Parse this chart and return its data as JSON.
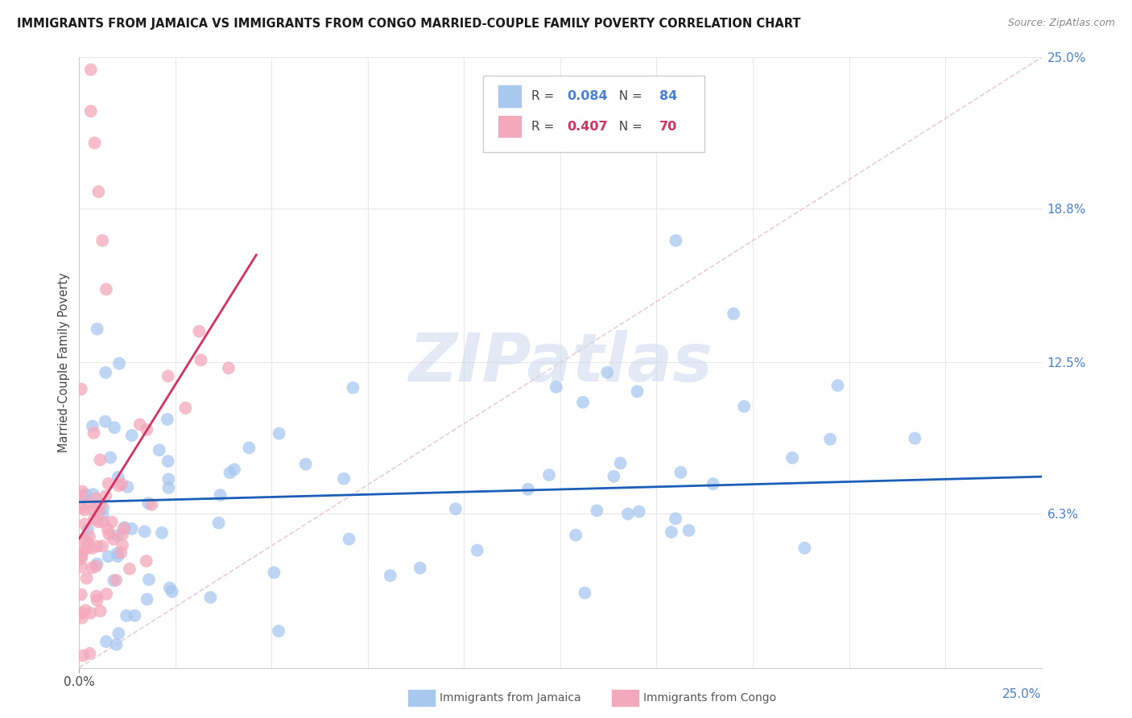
{
  "title": "IMMIGRANTS FROM JAMAICA VS IMMIGRANTS FROM CONGO MARRIED-COUPLE FAMILY POVERTY CORRELATION CHART",
  "source": "Source: ZipAtlas.com",
  "ylabel": "Married-Couple Family Poverty",
  "xlim": [
    0,
    0.25
  ],
  "ylim": [
    0,
    0.25
  ],
  "ytick_labels_right": [
    "6.3%",
    "12.5%",
    "18.8%",
    "25.0%"
  ],
  "ytick_vals_right": [
    0.063,
    0.125,
    0.188,
    0.25
  ],
  "jamaica_color": "#a8c8f0",
  "congo_color": "#f4a8bc",
  "jamaica_line_color": "#1a5eb8",
  "congo_line_color": "#d43060",
  "diagonal_color": "#e8c8d0",
  "watermark": "ZIPatlas",
  "background_color": "#ffffff",
  "grid_color": "#e8e8e8",
  "jamaica_R": 0.084,
  "jamaica_N": 84,
  "congo_R": 0.407,
  "congo_N": 70
}
